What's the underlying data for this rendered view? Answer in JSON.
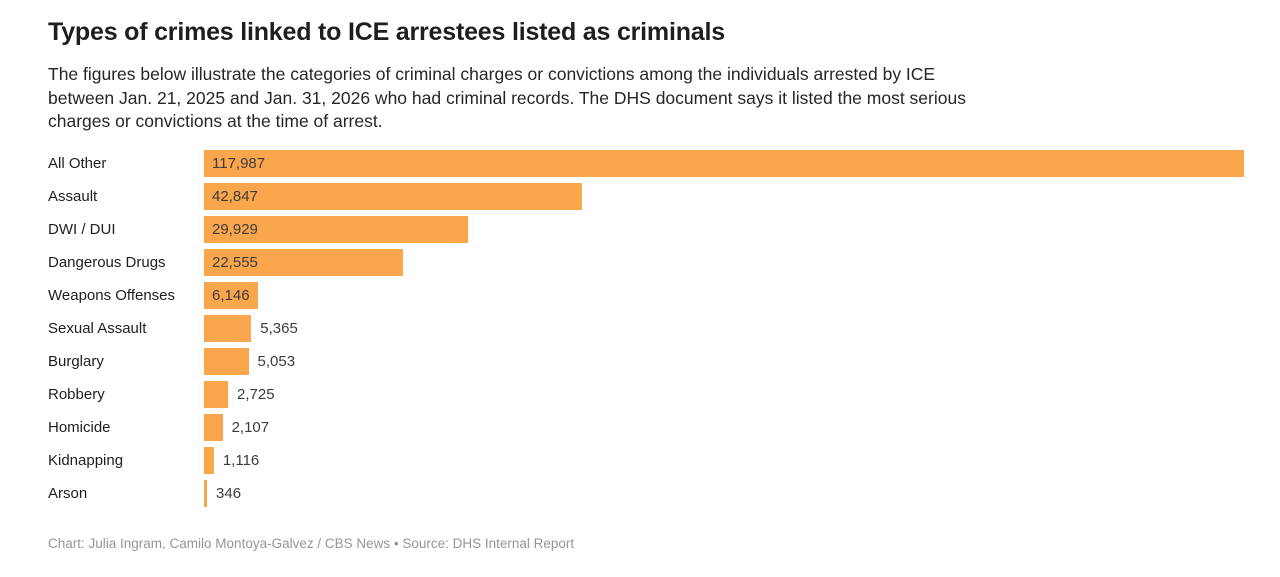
{
  "colors": {
    "bar": "#FAA64D",
    "title_text": "#1e1e1e",
    "body_text": "#262626",
    "value_text": "#3c3c3c",
    "footer_text": "#969696",
    "background": "#ffffff"
  },
  "header": {
    "title": "Types of crimes linked to ICE arrestees listed as criminals",
    "subtitle_lines": [
      "The figures below illustrate the categories of criminal charges or convictions among the individuals arrested by ICE",
      "between Jan. 21, 2025 and Jan. 31, 2026 who had criminal records. The DHS document says it listed the most serious",
      "charges or convictions at the time of arrest."
    ]
  },
  "chart_data": {
    "type": "bar",
    "orientation": "horizontal",
    "title": "Types of crimes linked to ICE arrestees listed as criminals",
    "categories": [
      "All Other",
      "Assault",
      "DWI / DUI",
      "Dangerous Drugs",
      "Weapons Offenses",
      "Sexual Assault",
      "Burglary",
      "Robbery",
      "Homicide",
      "Kidnapping",
      "Arson"
    ],
    "values": [
      117987,
      42847,
      29929,
      22555,
      6146,
      5365,
      5053,
      2725,
      2107,
      1116,
      346
    ],
    "value_labels": [
      "117,987",
      "42,847",
      "29,929",
      "22,555",
      "6,146",
      "5,365",
      "5,053",
      "2,725",
      "2,107",
      "1,116",
      "346"
    ],
    "label_inside": [
      true,
      true,
      true,
      true,
      true,
      false,
      false,
      false,
      false,
      false,
      false
    ],
    "xlim": [
      0,
      117987
    ],
    "xlabel": "",
    "ylabel": "",
    "grid": false,
    "legend": false,
    "bar_color": "#FAA64D"
  },
  "footer": {
    "credit_line": "Chart: Julia Ingram, Camilo Montoya-Galvez / CBS News • Source: DHS Internal Report"
  }
}
